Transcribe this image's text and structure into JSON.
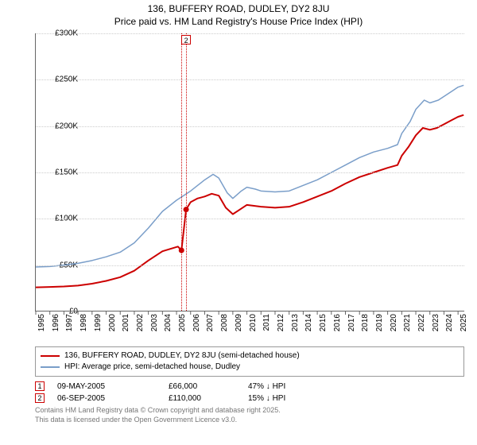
{
  "title_line1": "136, BUFFERY ROAD, DUDLEY, DY2 8JU",
  "title_line2": "Price paid vs. HM Land Registry's House Price Index (HPI)",
  "chart": {
    "type": "line",
    "background_color": "#ffffff",
    "grid_color": "#cccccc",
    "axis_color": "#666666",
    "x": {
      "min": 1995,
      "max": 2025.5,
      "ticks": [
        1995,
        1996,
        1997,
        1998,
        1999,
        2000,
        2001,
        2002,
        2003,
        2004,
        2005,
        2006,
        2007,
        2008,
        2009,
        2010,
        2011,
        2012,
        2013,
        2014,
        2015,
        2016,
        2017,
        2018,
        2019,
        2020,
        2021,
        2022,
        2023,
        2024,
        2025
      ]
    },
    "y": {
      "min": 0,
      "max": 300000,
      "ticks": [
        0,
        50000,
        100000,
        150000,
        200000,
        250000,
        300000
      ],
      "labels": [
        "£0",
        "£50K",
        "£100K",
        "£150K",
        "£200K",
        "£250K",
        "£300K"
      ]
    },
    "label_fontsize": 10,
    "series": [
      {
        "name": "price_paid",
        "color": "#cc0000",
        "width": 2,
        "points": [
          [
            1995,
            26000
          ],
          [
            1996,
            26500
          ],
          [
            1997,
            27000
          ],
          [
            1998,
            28000
          ],
          [
            1999,
            30000
          ],
          [
            2000,
            33000
          ],
          [
            2001,
            37000
          ],
          [
            2002,
            44000
          ],
          [
            2003,
            55000
          ],
          [
            2004,
            65000
          ],
          [
            2005.1,
            70000
          ],
          [
            2005.35,
            66000
          ],
          [
            2005.68,
            110000
          ],
          [
            2006,
            118000
          ],
          [
            2006.5,
            122000
          ],
          [
            2007,
            124000
          ],
          [
            2007.5,
            127000
          ],
          [
            2008,
            125000
          ],
          [
            2008.5,
            112000
          ],
          [
            2009,
            105000
          ],
          [
            2009.5,
            110000
          ],
          [
            2010,
            115000
          ],
          [
            2010.5,
            114000
          ],
          [
            2011,
            113000
          ],
          [
            2012,
            112000
          ],
          [
            2013,
            113000
          ],
          [
            2014,
            118000
          ],
          [
            2015,
            124000
          ],
          [
            2016,
            130000
          ],
          [
            2017,
            138000
          ],
          [
            2018,
            145000
          ],
          [
            2019,
            150000
          ],
          [
            2020,
            155000
          ],
          [
            2020.7,
            158000
          ],
          [
            2021,
            168000
          ],
          [
            2021.5,
            178000
          ],
          [
            2022,
            190000
          ],
          [
            2022.5,
            198000
          ],
          [
            2023,
            196000
          ],
          [
            2023.5,
            198000
          ],
          [
            2024,
            202000
          ],
          [
            2024.5,
            206000
          ],
          [
            2025,
            210000
          ],
          [
            2025.4,
            212000
          ]
        ],
        "sale_dots": [
          {
            "x": 2005.35,
            "y": 66000
          },
          {
            "x": 2005.68,
            "y": 110000
          }
        ]
      },
      {
        "name": "hpi",
        "color": "#7a9ec9",
        "width": 1.5,
        "points": [
          [
            1995,
            48000
          ],
          [
            1996,
            48500
          ],
          [
            1997,
            50000
          ],
          [
            1998,
            52000
          ],
          [
            1999,
            55000
          ],
          [
            2000,
            59000
          ],
          [
            2001,
            64000
          ],
          [
            2002,
            74000
          ],
          [
            2003,
            90000
          ],
          [
            2004,
            108000
          ],
          [
            2005,
            120000
          ],
          [
            2006,
            130000
          ],
          [
            2006.5,
            136000
          ],
          [
            2007,
            142000
          ],
          [
            2007.6,
            148000
          ],
          [
            2008,
            144000
          ],
          [
            2008.6,
            128000
          ],
          [
            2009,
            122000
          ],
          [
            2009.6,
            130000
          ],
          [
            2010,
            134000
          ],
          [
            2010.6,
            132000
          ],
          [
            2011,
            130000
          ],
          [
            2012,
            129000
          ],
          [
            2013,
            130000
          ],
          [
            2014,
            136000
          ],
          [
            2015,
            142000
          ],
          [
            2016,
            150000
          ],
          [
            2017,
            158000
          ],
          [
            2018,
            166000
          ],
          [
            2019,
            172000
          ],
          [
            2020,
            176000
          ],
          [
            2020.7,
            180000
          ],
          [
            2021,
            192000
          ],
          [
            2021.6,
            205000
          ],
          [
            2022,
            218000
          ],
          [
            2022.6,
            228000
          ],
          [
            2023,
            225000
          ],
          [
            2023.6,
            228000
          ],
          [
            2024,
            232000
          ],
          [
            2024.6,
            238000
          ],
          [
            2025,
            242000
          ],
          [
            2025.4,
            244000
          ]
        ]
      }
    ],
    "markers": [
      {
        "num": "1",
        "x": 2005.35,
        "color": "#cc0000",
        "hidden_label": true
      },
      {
        "num": "2",
        "x": 2005.68,
        "color": "#cc0000",
        "hidden_label": false
      }
    ]
  },
  "legend": {
    "items": [
      {
        "color": "#cc0000",
        "label": "136, BUFFERY ROAD, DUDLEY, DY2 8JU (semi-detached house)"
      },
      {
        "color": "#7a9ec9",
        "label": "HPI: Average price, semi-detached house, Dudley"
      }
    ]
  },
  "sales": [
    {
      "num": "1",
      "date": "09-MAY-2005",
      "price": "£66,000",
      "hpi": "47% ↓ HPI"
    },
    {
      "num": "2",
      "date": "06-SEP-2005",
      "price": "£110,000",
      "hpi": "15% ↓ HPI"
    }
  ],
  "attribution": {
    "line1": "Contains HM Land Registry data © Crown copyright and database right 2025.",
    "line2": "This data is licensed under the Open Government Licence v3.0."
  }
}
